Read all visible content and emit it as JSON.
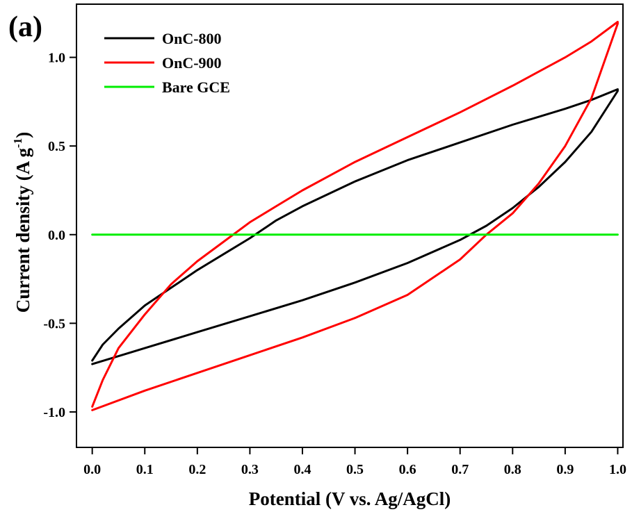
{
  "chart_data": {
    "type": "line",
    "panel_label": "(a)",
    "xlabel": "Potential (V vs. Ag/AgCl)",
    "ylabel_main": "Current density (A g",
    "ylabel_sup": "-1",
    "ylabel_close": ")",
    "xlim": [
      -0.03,
      1.01
    ],
    "ylim": [
      -1.2,
      1.3
    ],
    "x_ticks": [
      "0.0",
      "0.1",
      "0.2",
      "0.3",
      "0.4",
      "0.5",
      "0.6",
      "0.7",
      "0.8",
      "0.9",
      "1.0"
    ],
    "y_ticks": [
      "-1.0",
      "-0.5",
      "0.0",
      "0.5",
      "1.0"
    ],
    "grid": false,
    "legend_position": "top-left",
    "series": [
      {
        "name": "OnC-800",
        "color": "#000000",
        "points": [
          [
            0.0,
            -0.73
          ],
          [
            0.1,
            -0.64
          ],
          [
            0.2,
            -0.55
          ],
          [
            0.3,
            -0.46
          ],
          [
            0.4,
            -0.37
          ],
          [
            0.5,
            -0.27
          ],
          [
            0.6,
            -0.16
          ],
          [
            0.7,
            -0.03
          ],
          [
            0.75,
            0.05
          ],
          [
            0.8,
            0.15
          ],
          [
            0.85,
            0.27
          ],
          [
            0.9,
            0.41
          ],
          [
            0.95,
            0.58
          ],
          [
            1.0,
            0.81
          ],
          [
            1.0,
            0.82
          ],
          [
            0.95,
            0.76
          ],
          [
            0.9,
            0.71
          ],
          [
            0.8,
            0.62
          ],
          [
            0.7,
            0.52
          ],
          [
            0.6,
            0.42
          ],
          [
            0.5,
            0.3
          ],
          [
            0.4,
            0.16
          ],
          [
            0.35,
            0.08
          ],
          [
            0.3,
            -0.02
          ],
          [
            0.25,
            -0.11
          ],
          [
            0.2,
            -0.2
          ],
          [
            0.15,
            -0.3
          ],
          [
            0.1,
            -0.4
          ],
          [
            0.05,
            -0.53
          ],
          [
            0.02,
            -0.62
          ],
          [
            0.0,
            -0.71
          ]
        ]
      },
      {
        "name": "OnC-900",
        "color": "#ff0000",
        "points": [
          [
            0.0,
            -0.99
          ],
          [
            0.1,
            -0.88
          ],
          [
            0.2,
            -0.78
          ],
          [
            0.3,
            -0.68
          ],
          [
            0.4,
            -0.58
          ],
          [
            0.5,
            -0.47
          ],
          [
            0.6,
            -0.34
          ],
          [
            0.7,
            -0.14
          ],
          [
            0.75,
            0.0
          ],
          [
            0.8,
            0.12
          ],
          [
            0.85,
            0.29
          ],
          [
            0.9,
            0.5
          ],
          [
            0.95,
            0.77
          ],
          [
            1.0,
            1.19
          ],
          [
            1.0,
            1.2
          ],
          [
            0.95,
            1.09
          ],
          [
            0.9,
            1.0
          ],
          [
            0.8,
            0.84
          ],
          [
            0.7,
            0.69
          ],
          [
            0.6,
            0.55
          ],
          [
            0.5,
            0.41
          ],
          [
            0.4,
            0.25
          ],
          [
            0.35,
            0.16
          ],
          [
            0.3,
            0.07
          ],
          [
            0.25,
            -0.04
          ],
          [
            0.2,
            -0.15
          ],
          [
            0.15,
            -0.28
          ],
          [
            0.1,
            -0.45
          ],
          [
            0.05,
            -0.64
          ],
          [
            0.02,
            -0.82
          ],
          [
            0.0,
            -0.97
          ]
        ]
      },
      {
        "name": "Bare GCE",
        "color": "#00ee00",
        "points": [
          [
            0.0,
            0.0
          ],
          [
            1.0,
            0.0
          ]
        ]
      }
    ]
  }
}
